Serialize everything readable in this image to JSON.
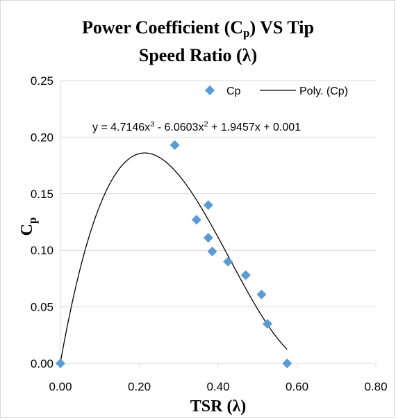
{
  "chart_data": {
    "type": "scatter",
    "title_parts": [
      "Power Coefficient (C",
      "p",
      ") VS Tip",
      "Speed Ratio (λ)"
    ],
    "xlabel": "TSR (λ)",
    "ylabel_main": "C",
    "ylabel_sub": "p",
    "xlim": [
      0,
      0.8
    ],
    "ylim": [
      0,
      0.25
    ],
    "x_ticks": [
      "0.00",
      "0.20",
      "0.40",
      "0.60",
      "0.80"
    ],
    "y_ticks": [
      "0.00",
      "0.05",
      "0.10",
      "0.15",
      "0.20",
      "0.25"
    ],
    "grid": "horizontal",
    "legend_position": "top-right",
    "series": [
      {
        "name": "Cp",
        "type": "scatter",
        "color": "#5b9bd5",
        "marker": "diamond",
        "x": [
          0.0,
          0.29,
          0.345,
          0.375,
          0.375,
          0.385,
          0.425,
          0.47,
          0.51,
          0.525,
          0.575
        ],
        "y": [
          0.0,
          0.193,
          0.127,
          0.14,
          0.111,
          0.099,
          0.09,
          0.078,
          0.061,
          0.035,
          0.0
        ]
      },
      {
        "name": "Poly. (Cp)",
        "type": "trendline",
        "color": "#000000",
        "coefficients": [
          4.7146,
          -6.0603,
          1.9457,
          0.001
        ],
        "x_range": [
          0,
          0.575
        ]
      }
    ],
    "equation": {
      "prefix": "y = 4.7146x",
      "exp1": "3",
      "mid": " - 6.0603x",
      "exp2": "2",
      "suffix": " + 1.9457x + 0.001"
    }
  }
}
